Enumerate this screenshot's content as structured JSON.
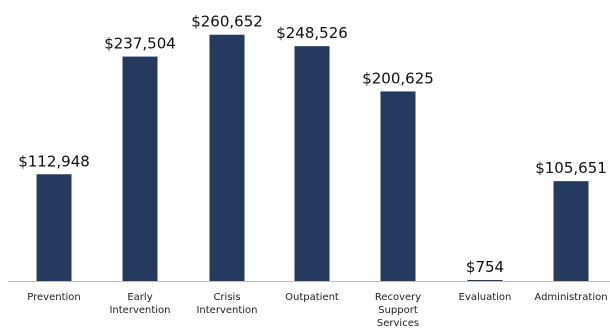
{
  "chart_data": {
    "type": "bar",
    "categories": [
      [
        "Prevention"
      ],
      [
        "Early",
        "Intervention"
      ],
      [
        "Crisis",
        "Intervention"
      ],
      [
        "Outpatient"
      ],
      [
        "Recovery",
        "Support",
        "Services"
      ],
      [
        "Evaluation"
      ],
      [
        "Administration"
      ]
    ],
    "values": [
      112948,
      237504,
      260652,
      248526,
      200625,
      754,
      105651
    ],
    "data_labels": [
      "$112,948",
      "$237,504",
      "$260,652",
      "$248,526",
      "$200,625",
      "$754",
      "$105,651"
    ],
    "title": "",
    "xlabel": "",
    "ylabel": "",
    "ylim": [
      0,
      272000
    ],
    "grid": false,
    "legend": "none",
    "bar_color": "#243a5e",
    "axis_color": "#bfbfbf"
  }
}
